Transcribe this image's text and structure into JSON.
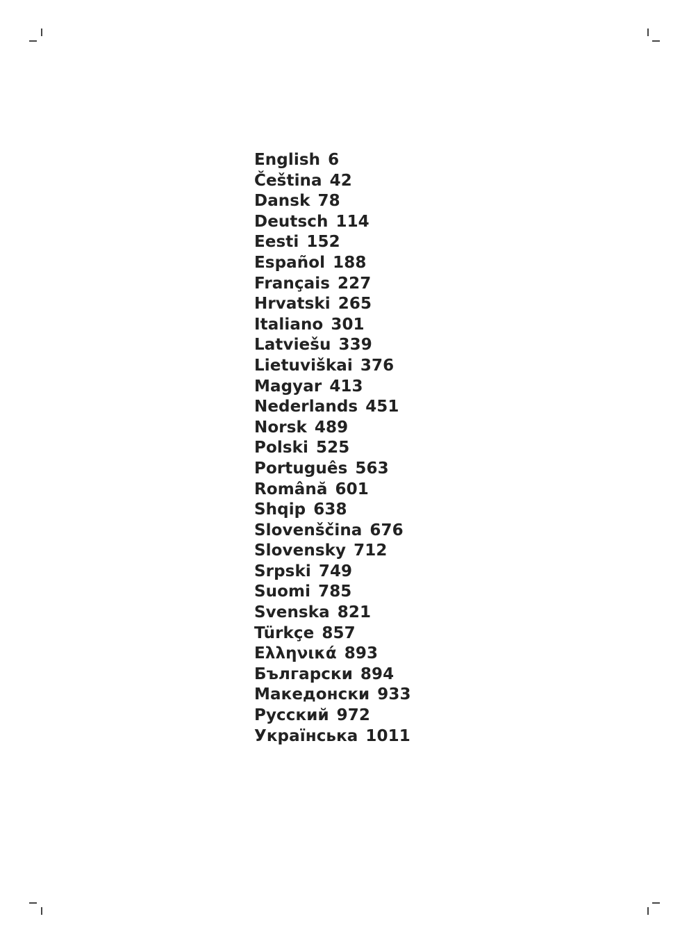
{
  "toc": [
    {
      "language": "English",
      "page": "6"
    },
    {
      "language": "Čeština",
      "page": "42"
    },
    {
      "language": "Dansk",
      "page": "78"
    },
    {
      "language": "Deutsch",
      "page": "114"
    },
    {
      "language": "Eesti",
      "page": "152"
    },
    {
      "language": "Español",
      "page": "188"
    },
    {
      "language": "Français",
      "page": "227"
    },
    {
      "language": "Hrvatski",
      "page": "265"
    },
    {
      "language": "Italiano",
      "page": "301"
    },
    {
      "language": "Latviešu",
      "page": "339"
    },
    {
      "language": "Lietuviškai",
      "page": "376"
    },
    {
      "language": "Magyar",
      "page": "413"
    },
    {
      "language": "Nederlands",
      "page": "451"
    },
    {
      "language": "Norsk",
      "page": "489"
    },
    {
      "language": "Polski",
      "page": "525"
    },
    {
      "language": "Português",
      "page": "563"
    },
    {
      "language": "Română",
      "page": "601"
    },
    {
      "language": "Shqip",
      "page": "638"
    },
    {
      "language": "Slovenščina",
      "page": "676"
    },
    {
      "language": "Slovensky",
      "page": "712"
    },
    {
      "language": "Srpski",
      "page": "749"
    },
    {
      "language": "Suomi",
      "page": "785"
    },
    {
      "language": "Svenska",
      "page": "821"
    },
    {
      "language": "Türkçe",
      "page": "857"
    },
    {
      "language": "Ελληνικά",
      "page": "893"
    },
    {
      "language": "Български",
      "page": "894"
    },
    {
      "language": "Македонски",
      "page": "933"
    },
    {
      "language": "Русский",
      "page": "972"
    },
    {
      "language": "Українська",
      "page": "1011"
    }
  ]
}
